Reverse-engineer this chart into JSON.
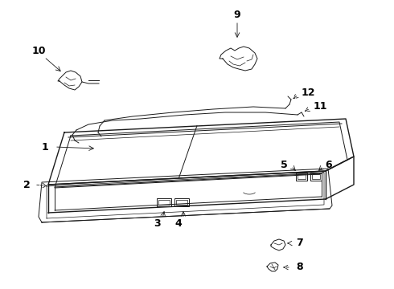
{
  "bg_color": "#ffffff",
  "line_color": "#1a1a1a",
  "label_color": "#000000",
  "label_fontsize": 9,
  "label_fontweight": "bold",
  "figw": 4.9,
  "figh": 3.6,
  "dpi": 100
}
